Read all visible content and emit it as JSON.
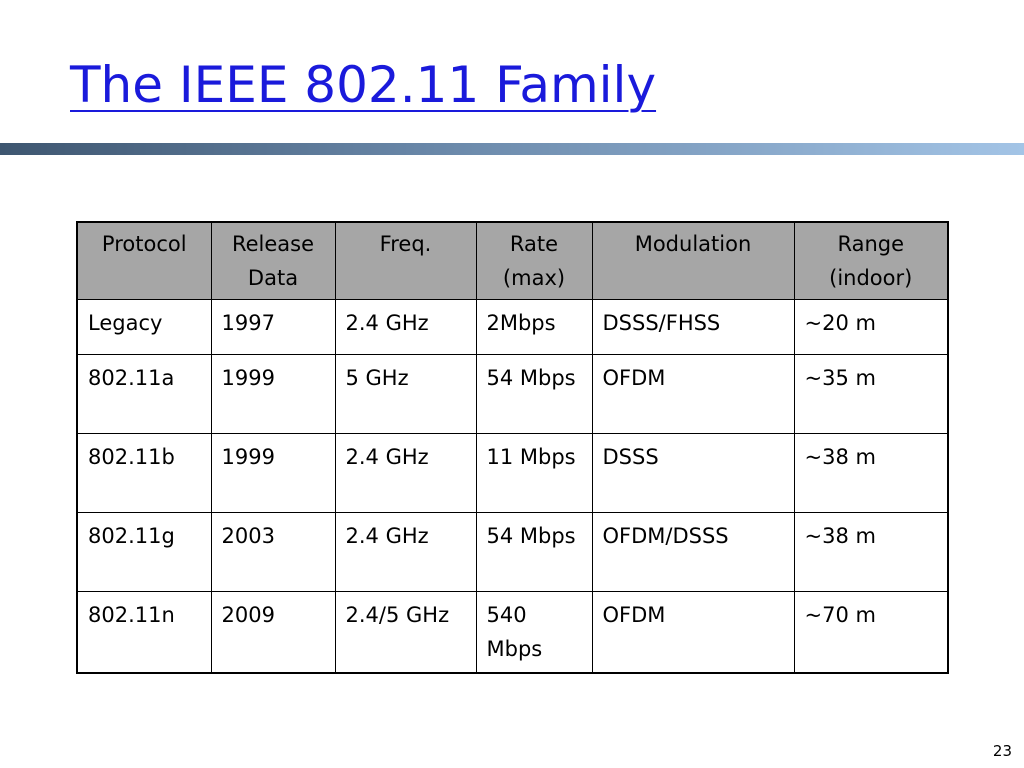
{
  "slide": {
    "title": "The IEEE 802.11 Family",
    "page_number": "23",
    "title_color": "#1a1adb",
    "header_fill": "#a6a6a6"
  },
  "table": {
    "headers": [
      "Protocol",
      "Release Data",
      "Freq.",
      "Rate (max)",
      "Modulation",
      "Range (indoor)"
    ],
    "rows": [
      [
        "Legacy",
        "1997",
        "2.4 GHz",
        "2Mbps",
        "DSSS/FHSS",
        "~20 m"
      ],
      [
        "802.11a",
        "1999",
        "5 GHz",
        "54 Mbps",
        "OFDM",
        "~35 m"
      ],
      [
        "802.11b",
        "1999",
        "2.4 GHz",
        "11 Mbps",
        "DSSS",
        "~38 m"
      ],
      [
        "802.11g",
        "2003",
        "2.4 GHz",
        "54 Mbps",
        "OFDM/DSSS",
        "~38 m"
      ],
      [
        "802.11n",
        "2009",
        "2.4/5 GHz",
        "540 Mbps",
        "OFDM",
        "~70 m"
      ]
    ]
  }
}
